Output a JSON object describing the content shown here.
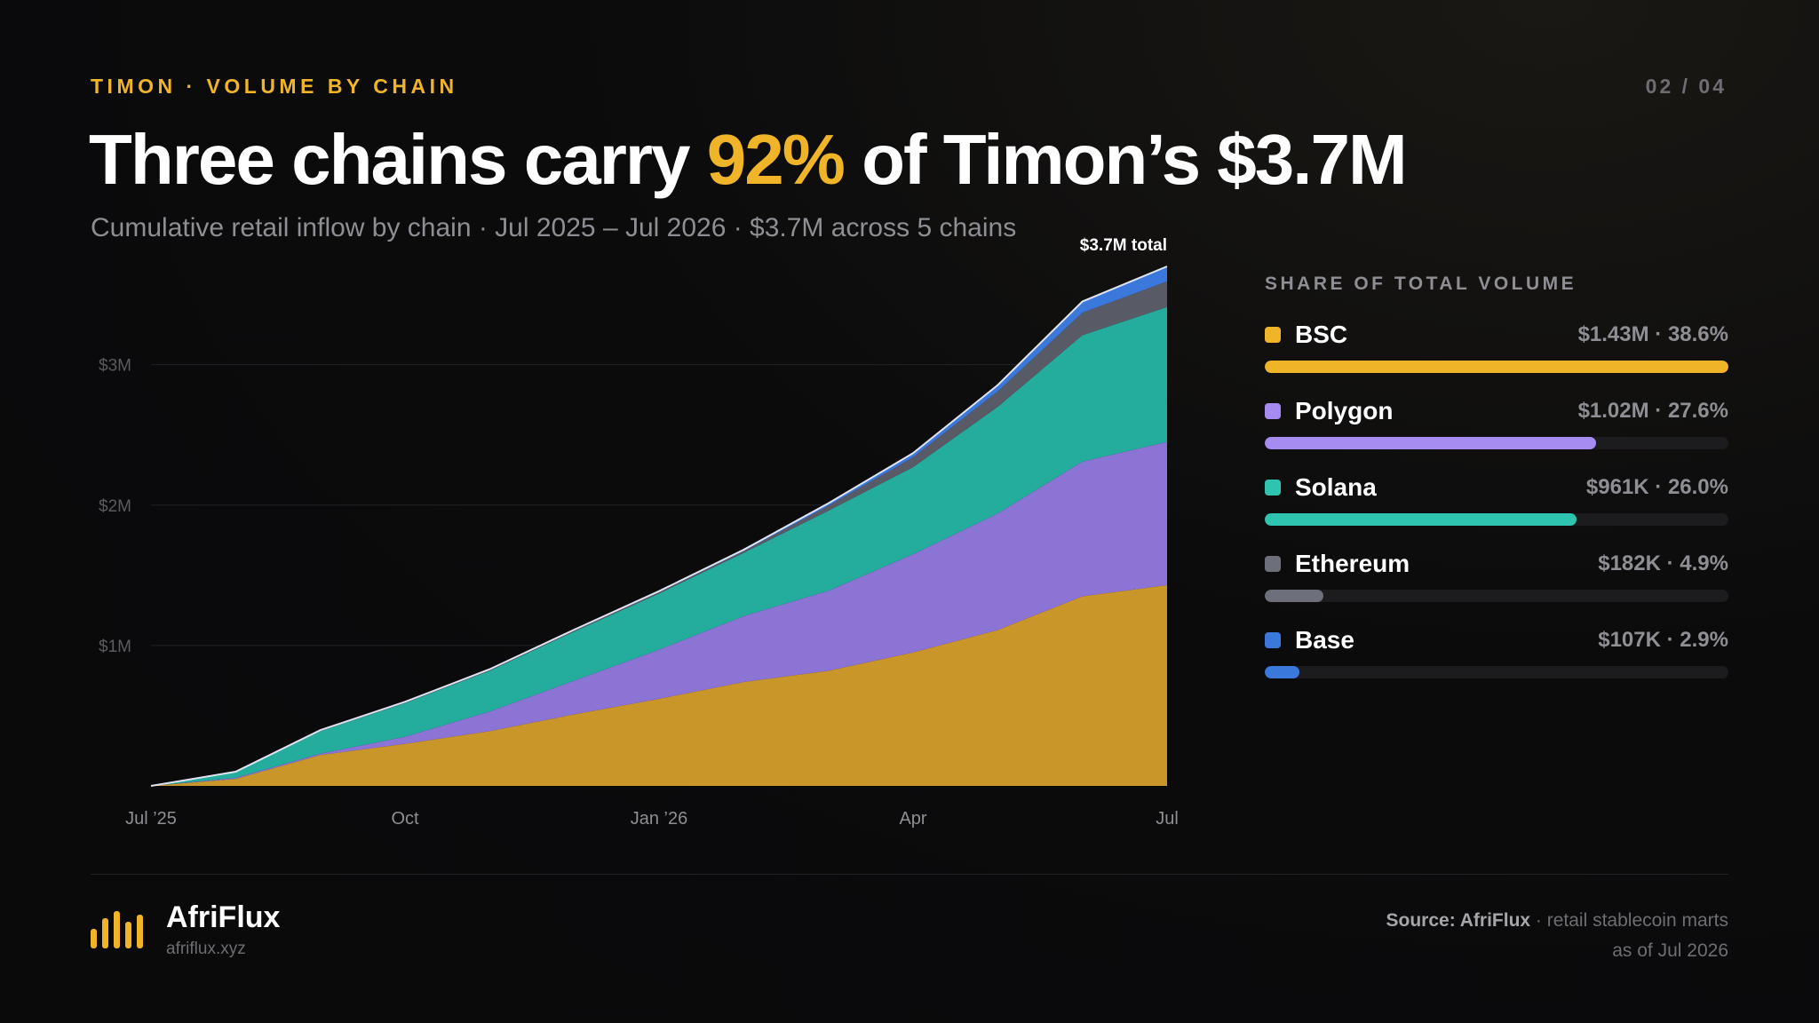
{
  "header": {
    "eyebrow": "TIMON · VOLUME BY CHAIN",
    "page": "02 / 04",
    "headline_pre": "Three chains carry ",
    "headline_highlight": "92%",
    "headline_post": " of Timon’s $3.7M",
    "subtitle": "Cumulative retail inflow by chain · Jul 2025 – Jul 2026 · $3.7M across 5 chains"
  },
  "chart_data": {
    "type": "area",
    "stacked": true,
    "x": [
      "2025-07",
      "2025-08",
      "2025-09",
      "2025-10",
      "2025-11",
      "2025-12",
      "2026-01",
      "2026-02",
      "2026-03",
      "2026-04",
      "2026-05",
      "2026-06",
      "2026-07"
    ],
    "x_tick_labels": [
      "Jul ’25",
      "Oct",
      "Jan ’26",
      "Apr",
      "Jul"
    ],
    "y_tick_labels": [
      "$1M",
      "$2M",
      "$3M"
    ],
    "y_ticks": [
      1000000,
      2000000,
      3000000
    ],
    "ylim": [
      0,
      3700000
    ],
    "grid": true,
    "annotation": "$3.7M total",
    "series": [
      {
        "name": "BSC",
        "color": "#c9962a",
        "values": [
          0,
          50000,
          220000,
          300000,
          390000,
          510000,
          620000,
          740000,
          820000,
          950000,
          1110000,
          1350000,
          1430000
        ]
      },
      {
        "name": "Polygon",
        "color": "#8b74d4",
        "values": [
          0,
          8000,
          10000,
          50000,
          140000,
          240000,
          350000,
          470000,
          570000,
          700000,
          830000,
          960000,
          1020000
        ]
      },
      {
        "name": "Solana",
        "color": "#24ad9c",
        "values": [
          0,
          40000,
          160000,
          240000,
          290000,
          350000,
          400000,
          450000,
          570000,
          620000,
          760000,
          900000,
          961000
        ]
      },
      {
        "name": "Ethereum",
        "color": "#585a66",
        "values": [
          0,
          2000,
          5000,
          6000,
          7000,
          8000,
          10000,
          12000,
          35000,
          70000,
          110000,
          160000,
          182000
        ]
      },
      {
        "name": "Base",
        "color": "#3a78db",
        "values": [
          0,
          1000,
          2000,
          3000,
          4000,
          5000,
          7000,
          10000,
          18000,
          30000,
          45000,
          80000,
          107000
        ]
      }
    ]
  },
  "legend": {
    "title": "SHARE OF TOTAL VOLUME",
    "items": [
      {
        "name": "BSC",
        "stats": "$1.43M · 38.6%",
        "share": 1.0,
        "color": "#f0b429"
      },
      {
        "name": "Polygon",
        "stats": "$1.02M · 27.6%",
        "share": 0.715,
        "color": "#a68bf0"
      },
      {
        "name": "Solana",
        "stats": "$961K · 26.0%",
        "share": 0.673,
        "color": "#2ec4b0"
      },
      {
        "name": "Ethereum",
        "stats": "$182K · 4.9%",
        "share": 0.127,
        "color": "#6d6f7a"
      },
      {
        "name": "Base",
        "stats": "$107K · 2.9%",
        "share": 0.075,
        "color": "#3a78db"
      }
    ]
  },
  "footer": {
    "brand": "AfriFlux",
    "url": "afriflux.xyz",
    "source_label": "Source: AfriFlux",
    "source_rest": " · retail stablecoin marts",
    "source_line2": "as of Jul 2026"
  }
}
